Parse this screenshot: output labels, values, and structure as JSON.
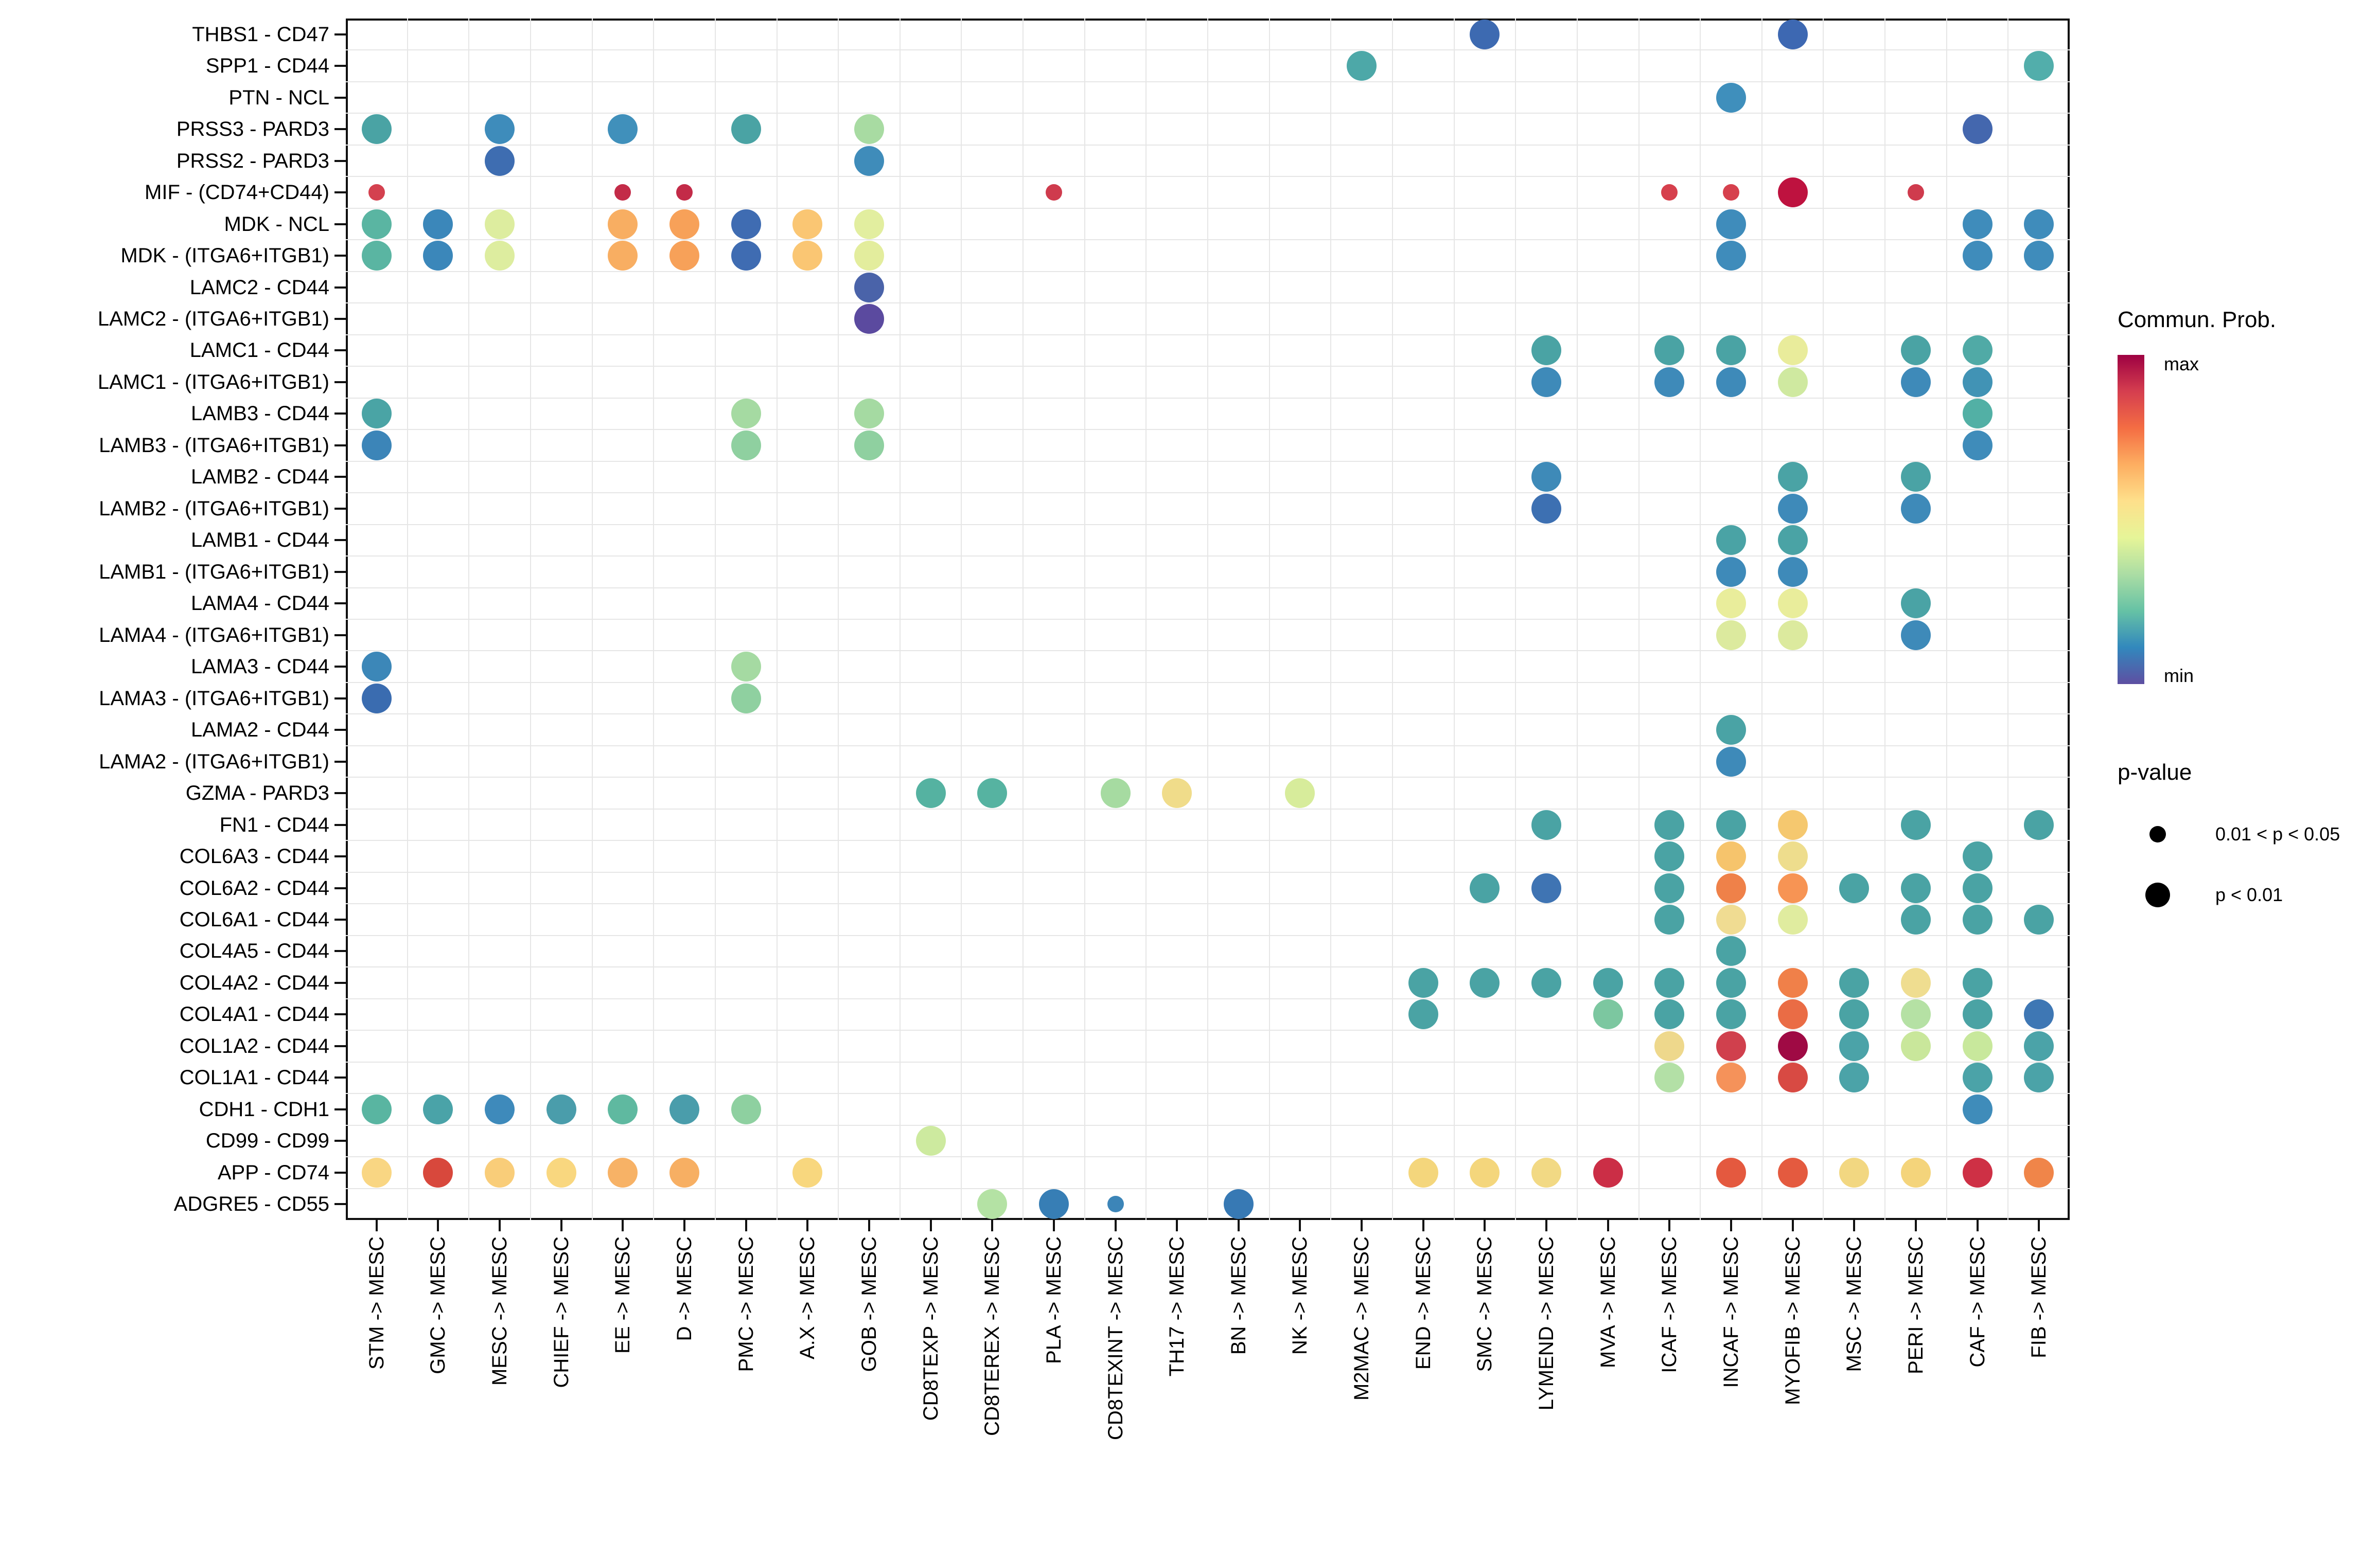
{
  "chart_data": {
    "type": "bubble",
    "description": "Cell-cell communication dot plot: ligand-receptor pairs (rows) vs sender -> receiver cell pairs (columns). Dot color = communication probability (Spectral scale, min to max), dot size = p-value class.",
    "rows": [
      "THBS1 - CD47",
      "SPP1 - CD44",
      "PTN - NCL",
      "PRSS3 - PARD3",
      "PRSS2 - PARD3",
      "MIF - (CD74+CD44)",
      "MDK - NCL",
      "MDK - (ITGA6+ITGB1)",
      "LAMC2 - CD44",
      "LAMC2 - (ITGA6+ITGB1)",
      "LAMC1 - CD44",
      "LAMC1 - (ITGA6+ITGB1)",
      "LAMB3 - CD44",
      "LAMB3 - (ITGA6+ITGB1)",
      "LAMB2 - CD44",
      "LAMB2 - (ITGA6+ITGB1)",
      "LAMB1 - CD44",
      "LAMB1 - (ITGA6+ITGB1)",
      "LAMA4 - CD44",
      "LAMA4 - (ITGA6+ITGB1)",
      "LAMA3 - CD44",
      "LAMA3 - (ITGA6+ITGB1)",
      "LAMA2 - CD44",
      "LAMA2 - (ITGA6+ITGB1)",
      "GZMA - PARD3",
      "FN1 - CD44",
      "COL6A3 - CD44",
      "COL6A2 - CD44",
      "COL6A1 - CD44",
      "COL4A5 - CD44",
      "COL4A2 - CD44",
      "COL4A1 - CD44",
      "COL1A2 - CD44",
      "COL1A1 - CD44",
      "CDH1 - CDH1",
      "CD99 - CD99",
      "APP - CD74",
      "ADGRE5 - CD55"
    ],
    "columns": [
      "STM -> MESC",
      "GMC -> MESC",
      "MESC -> MESC",
      "CHIEF -> MESC",
      "EE -> MESC",
      "D -> MESC",
      "PMC -> MESC",
      "A.X -> MESC",
      "GOB -> MESC",
      "CD8TEXP -> MESC",
      "CD8TEREX -> MESC",
      "PLA -> MESC",
      "CD8TEXINT -> MESC",
      "TH17 -> MESC",
      "BN -> MESC",
      "NK -> MESC",
      "M2MAC -> MESC",
      "END -> MESC",
      "SMC -> MESC",
      "LYMEND -> MESC",
      "MVA -> MESC",
      "ICAF -> MESC",
      "INCAF -> MESC",
      "MYOFIB -> MESC",
      "MSC -> MESC",
      "PERI -> MESC",
      "CAF -> MESC",
      "FIB -> MESC"
    ],
    "points_format": [
      "column_index",
      "row_index",
      "hex_color",
      "p_class (1 = p<0.01 large dot, 0 = 0.01<p<0.05 small dot)"
    ],
    "points": [
      [
        18,
        0,
        "#3d6ab1",
        1
      ],
      [
        23,
        0,
        "#3d68b2",
        1
      ],
      [
        16,
        1,
        "#4da8a8",
        1
      ],
      [
        27,
        1,
        "#52aeab",
        1
      ],
      [
        22,
        2,
        "#3f8fbc",
        1
      ],
      [
        0,
        3,
        "#4aa3a4",
        1
      ],
      [
        2,
        3,
        "#3e8cbb",
        1
      ],
      [
        4,
        3,
        "#4090bb",
        1
      ],
      [
        6,
        3,
        "#4aa3a4",
        1
      ],
      [
        8,
        3,
        "#a8dba2",
        1
      ],
      [
        26,
        3,
        "#4467ae",
        1
      ],
      [
        2,
        4,
        "#3e6db1",
        1
      ],
      [
        8,
        4,
        "#3f8cba",
        1
      ],
      [
        0,
        5,
        "#d4414f",
        0
      ],
      [
        4,
        5,
        "#c32b48",
        0
      ],
      [
        5,
        5,
        "#c32b48",
        0
      ],
      [
        11,
        5,
        "#cf3b4d",
        0
      ],
      [
        21,
        5,
        "#d6404d",
        0
      ],
      [
        22,
        5,
        "#d6404d",
        0
      ],
      [
        23,
        5,
        "#be123f",
        1
      ],
      [
        25,
        5,
        "#cf3b4d",
        0
      ],
      [
        0,
        6,
        "#5ab5a2",
        1
      ],
      [
        1,
        6,
        "#3b87ba",
        1
      ],
      [
        2,
        6,
        "#dded9f",
        1
      ],
      [
        4,
        6,
        "#f8ae62",
        1
      ],
      [
        5,
        6,
        "#f7a159",
        1
      ],
      [
        6,
        6,
        "#3f6cb2",
        1
      ],
      [
        7,
        6,
        "#fac673",
        1
      ],
      [
        8,
        6,
        "#e2ee9f",
        1
      ],
      [
        22,
        6,
        "#3f8cbb",
        1
      ],
      [
        26,
        6,
        "#3f8cbb",
        1
      ],
      [
        27,
        6,
        "#3f8cbb",
        1
      ],
      [
        0,
        7,
        "#5ab5a2",
        1
      ],
      [
        1,
        7,
        "#3b87ba",
        1
      ],
      [
        2,
        7,
        "#dded9f",
        1
      ],
      [
        4,
        7,
        "#f8ae62",
        1
      ],
      [
        5,
        7,
        "#f7a159",
        1
      ],
      [
        6,
        7,
        "#3f6cb2",
        1
      ],
      [
        7,
        7,
        "#fac673",
        1
      ],
      [
        8,
        7,
        "#e3ed9d",
        1
      ],
      [
        22,
        7,
        "#3f8cbb",
        1
      ],
      [
        26,
        7,
        "#3f8cbb",
        1
      ],
      [
        27,
        7,
        "#3f8cbb",
        1
      ],
      [
        8,
        8,
        "#4a63a9",
        1
      ],
      [
        8,
        9,
        "#5b4a9f",
        1
      ],
      [
        19,
        10,
        "#4aa3a4",
        1
      ],
      [
        21,
        10,
        "#4aa3a4",
        1
      ],
      [
        22,
        10,
        "#4aa3a4",
        1
      ],
      [
        23,
        10,
        "#e9ec9b",
        1
      ],
      [
        25,
        10,
        "#4aa3a4",
        1
      ],
      [
        26,
        10,
        "#50aaa6",
        1
      ],
      [
        19,
        11,
        "#3e8ab9",
        1
      ],
      [
        21,
        11,
        "#3e8ab9",
        1
      ],
      [
        22,
        11,
        "#3e8ab9",
        1
      ],
      [
        23,
        11,
        "#cfe9a0",
        1
      ],
      [
        25,
        11,
        "#3e8ab9",
        1
      ],
      [
        26,
        11,
        "#4193b5",
        1
      ],
      [
        0,
        12,
        "#4aa4a5",
        1
      ],
      [
        6,
        12,
        "#a5daa2",
        1
      ],
      [
        8,
        12,
        "#a5daa2",
        1
      ],
      [
        26,
        12,
        "#52b0a5",
        1
      ],
      [
        0,
        13,
        "#3c85b8",
        1
      ],
      [
        6,
        13,
        "#8fd0a0",
        1
      ],
      [
        8,
        13,
        "#8fd0a0",
        1
      ],
      [
        26,
        13,
        "#3f8cba",
        1
      ],
      [
        19,
        14,
        "#3e8ab8",
        1
      ],
      [
        23,
        14,
        "#4aa3a5",
        1
      ],
      [
        25,
        14,
        "#4aa3a5",
        1
      ],
      [
        19,
        15,
        "#3d70b2",
        1
      ],
      [
        23,
        15,
        "#3e8ab9",
        1
      ],
      [
        25,
        15,
        "#3e8ab9",
        1
      ],
      [
        22,
        16,
        "#4aa3a5",
        1
      ],
      [
        23,
        16,
        "#4aa3a5",
        1
      ],
      [
        22,
        17,
        "#3e8ab9",
        1
      ],
      [
        23,
        17,
        "#3e8ab9",
        1
      ],
      [
        22,
        18,
        "#e9ed9b",
        1
      ],
      [
        23,
        18,
        "#e9ed9b",
        1
      ],
      [
        25,
        18,
        "#4aa3a5",
        1
      ],
      [
        22,
        19,
        "#dcea9e",
        1
      ],
      [
        23,
        19,
        "#dcea9e",
        1
      ],
      [
        25,
        19,
        "#3e8ab9",
        1
      ],
      [
        0,
        20,
        "#3c87b8",
        1
      ],
      [
        6,
        20,
        "#a5daa2",
        1
      ],
      [
        0,
        21,
        "#3a6cb0",
        1
      ],
      [
        6,
        21,
        "#8fd0a0",
        1
      ],
      [
        22,
        22,
        "#4aa3a5",
        1
      ],
      [
        22,
        23,
        "#3e8ab9",
        1
      ],
      [
        9,
        24,
        "#55b2a1",
        1
      ],
      [
        10,
        24,
        "#56b3a1",
        1
      ],
      [
        12,
        24,
        "#a6dba1",
        1
      ],
      [
        13,
        24,
        "#f0dc8a",
        1
      ],
      [
        15,
        24,
        "#d7ec9b",
        1
      ],
      [
        19,
        25,
        "#4aa3a4",
        1
      ],
      [
        21,
        25,
        "#4aa3a4",
        1
      ],
      [
        22,
        25,
        "#4aa3a4",
        1
      ],
      [
        23,
        25,
        "#f5c86f",
        1
      ],
      [
        25,
        25,
        "#4aa3a4",
        1
      ],
      [
        27,
        25,
        "#4aa3a4",
        1
      ],
      [
        21,
        26,
        "#4aa3a4",
        1
      ],
      [
        22,
        26,
        "#f6c46c",
        1
      ],
      [
        23,
        26,
        "#eedd8d",
        1
      ],
      [
        26,
        26,
        "#4aa3a4",
        1
      ],
      [
        18,
        27,
        "#4aa3a4",
        1
      ],
      [
        19,
        27,
        "#3f74b3",
        1
      ],
      [
        21,
        27,
        "#4aa3a4",
        1
      ],
      [
        22,
        27,
        "#ef8149",
        1
      ],
      [
        23,
        27,
        "#f79454",
        1
      ],
      [
        24,
        27,
        "#4aa3a4",
        1
      ],
      [
        25,
        27,
        "#4aa3a4",
        1
      ],
      [
        26,
        27,
        "#4aa3a4",
        1
      ],
      [
        21,
        28,
        "#4aa3a4",
        1
      ],
      [
        22,
        28,
        "#f0dc92",
        1
      ],
      [
        23,
        28,
        "#e0ec9f",
        1
      ],
      [
        25,
        28,
        "#4aa3a4",
        1
      ],
      [
        26,
        28,
        "#4aa3a4",
        1
      ],
      [
        27,
        28,
        "#4aa3a4",
        1
      ],
      [
        22,
        29,
        "#4aa3a4",
        1
      ],
      [
        17,
        30,
        "#4aa3a4",
        1
      ],
      [
        18,
        30,
        "#4aa3a4",
        1
      ],
      [
        19,
        30,
        "#4aa3a4",
        1
      ],
      [
        20,
        30,
        "#4aa3a4",
        1
      ],
      [
        21,
        30,
        "#4aa3a4",
        1
      ],
      [
        22,
        30,
        "#4aa3a4",
        1
      ],
      [
        23,
        30,
        "#f08049",
        1
      ],
      [
        24,
        30,
        "#4aa3a4",
        1
      ],
      [
        25,
        30,
        "#efdd90",
        1
      ],
      [
        26,
        30,
        "#4aa3a4",
        1
      ],
      [
        17,
        31,
        "#4aa3a4",
        1
      ],
      [
        20,
        31,
        "#7cc7a0",
        1
      ],
      [
        21,
        31,
        "#4aa3a4",
        1
      ],
      [
        22,
        31,
        "#4aa3a4",
        1
      ],
      [
        23,
        31,
        "#ea6c45",
        1
      ],
      [
        24,
        31,
        "#4aa3a4",
        1
      ],
      [
        25,
        31,
        "#b5e1a4",
        1
      ],
      [
        26,
        31,
        "#4aa3a4",
        1
      ],
      [
        27,
        31,
        "#3e77b4",
        1
      ],
      [
        21,
        32,
        "#eed88c",
        1
      ],
      [
        22,
        32,
        "#d0404d",
        1
      ],
      [
        23,
        32,
        "#9f0a44",
        1
      ],
      [
        24,
        32,
        "#4ba3a8",
        1
      ],
      [
        25,
        32,
        "#c9e79b",
        1
      ],
      [
        26,
        32,
        "#c8e89c",
        1
      ],
      [
        27,
        32,
        "#4ba3a8",
        1
      ],
      [
        21,
        33,
        "#b3e0a6",
        1
      ],
      [
        22,
        33,
        "#f5925a",
        1
      ],
      [
        23,
        33,
        "#d84a43",
        1
      ],
      [
        24,
        33,
        "#4ba3a8",
        1
      ],
      [
        26,
        33,
        "#4ba3a8",
        1
      ],
      [
        27,
        33,
        "#4ba3a8",
        1
      ],
      [
        0,
        34,
        "#59b5a1",
        1
      ],
      [
        1,
        34,
        "#4aa3a8",
        1
      ],
      [
        2,
        34,
        "#3e8abb",
        1
      ],
      [
        3,
        34,
        "#4a9dab",
        1
      ],
      [
        4,
        34,
        "#5fb9a0",
        1
      ],
      [
        5,
        34,
        "#4a9dab",
        1
      ],
      [
        6,
        34,
        "#8ed0a0",
        1
      ],
      [
        26,
        34,
        "#3f8cba",
        1
      ],
      [
        9,
        35,
        "#cdea9f",
        1
      ],
      [
        0,
        36,
        "#f9d683",
        1
      ],
      [
        1,
        36,
        "#d8483c",
        1
      ],
      [
        2,
        36,
        "#f9cd79",
        1
      ],
      [
        3,
        36,
        "#f9d77f",
        1
      ],
      [
        4,
        36,
        "#f7b266",
        1
      ],
      [
        5,
        36,
        "#f7af63",
        1
      ],
      [
        7,
        36,
        "#f8d77e",
        1
      ],
      [
        17,
        36,
        "#f4d67c",
        1
      ],
      [
        18,
        36,
        "#f4d67c",
        1
      ],
      [
        19,
        36,
        "#f2d984",
        1
      ],
      [
        20,
        36,
        "#cb2e46",
        1
      ],
      [
        22,
        36,
        "#e4593f",
        1
      ],
      [
        23,
        36,
        "#e45a3f",
        1
      ],
      [
        24,
        36,
        "#f2d781",
        1
      ],
      [
        25,
        36,
        "#f4d47b",
        1
      ],
      [
        26,
        36,
        "#ce3045",
        1
      ],
      [
        27,
        36,
        "#f08549",
        1
      ],
      [
        10,
        37,
        "#b4e2a4",
        1
      ],
      [
        11,
        37,
        "#377eb5",
        1
      ],
      [
        12,
        37,
        "#3c85b8",
        0
      ],
      [
        14,
        37,
        "#3779b4",
        1
      ]
    ],
    "legend": {
      "color_title": "Commun. Prob.",
      "color_max_label": "max",
      "color_min_label": "min",
      "color_scale_top_to_bottom": [
        "#9e0142",
        "#d53e4f",
        "#f46d43",
        "#fdae61",
        "#fee08b",
        "#e6f598",
        "#abdda4",
        "#66c2a5",
        "#3288bd",
        "#5e4fa2"
      ],
      "size_title": "p-value",
      "size_items": [
        {
          "label": "0.01 < p < 0.05",
          "size": "small"
        },
        {
          "label": "p < 0.01",
          "size": "large"
        }
      ]
    },
    "layout": {
      "grid": true,
      "grid_color": "#e6e6e6",
      "axis_color": "#101010",
      "x_tick_rotation_deg": 90
    }
  }
}
